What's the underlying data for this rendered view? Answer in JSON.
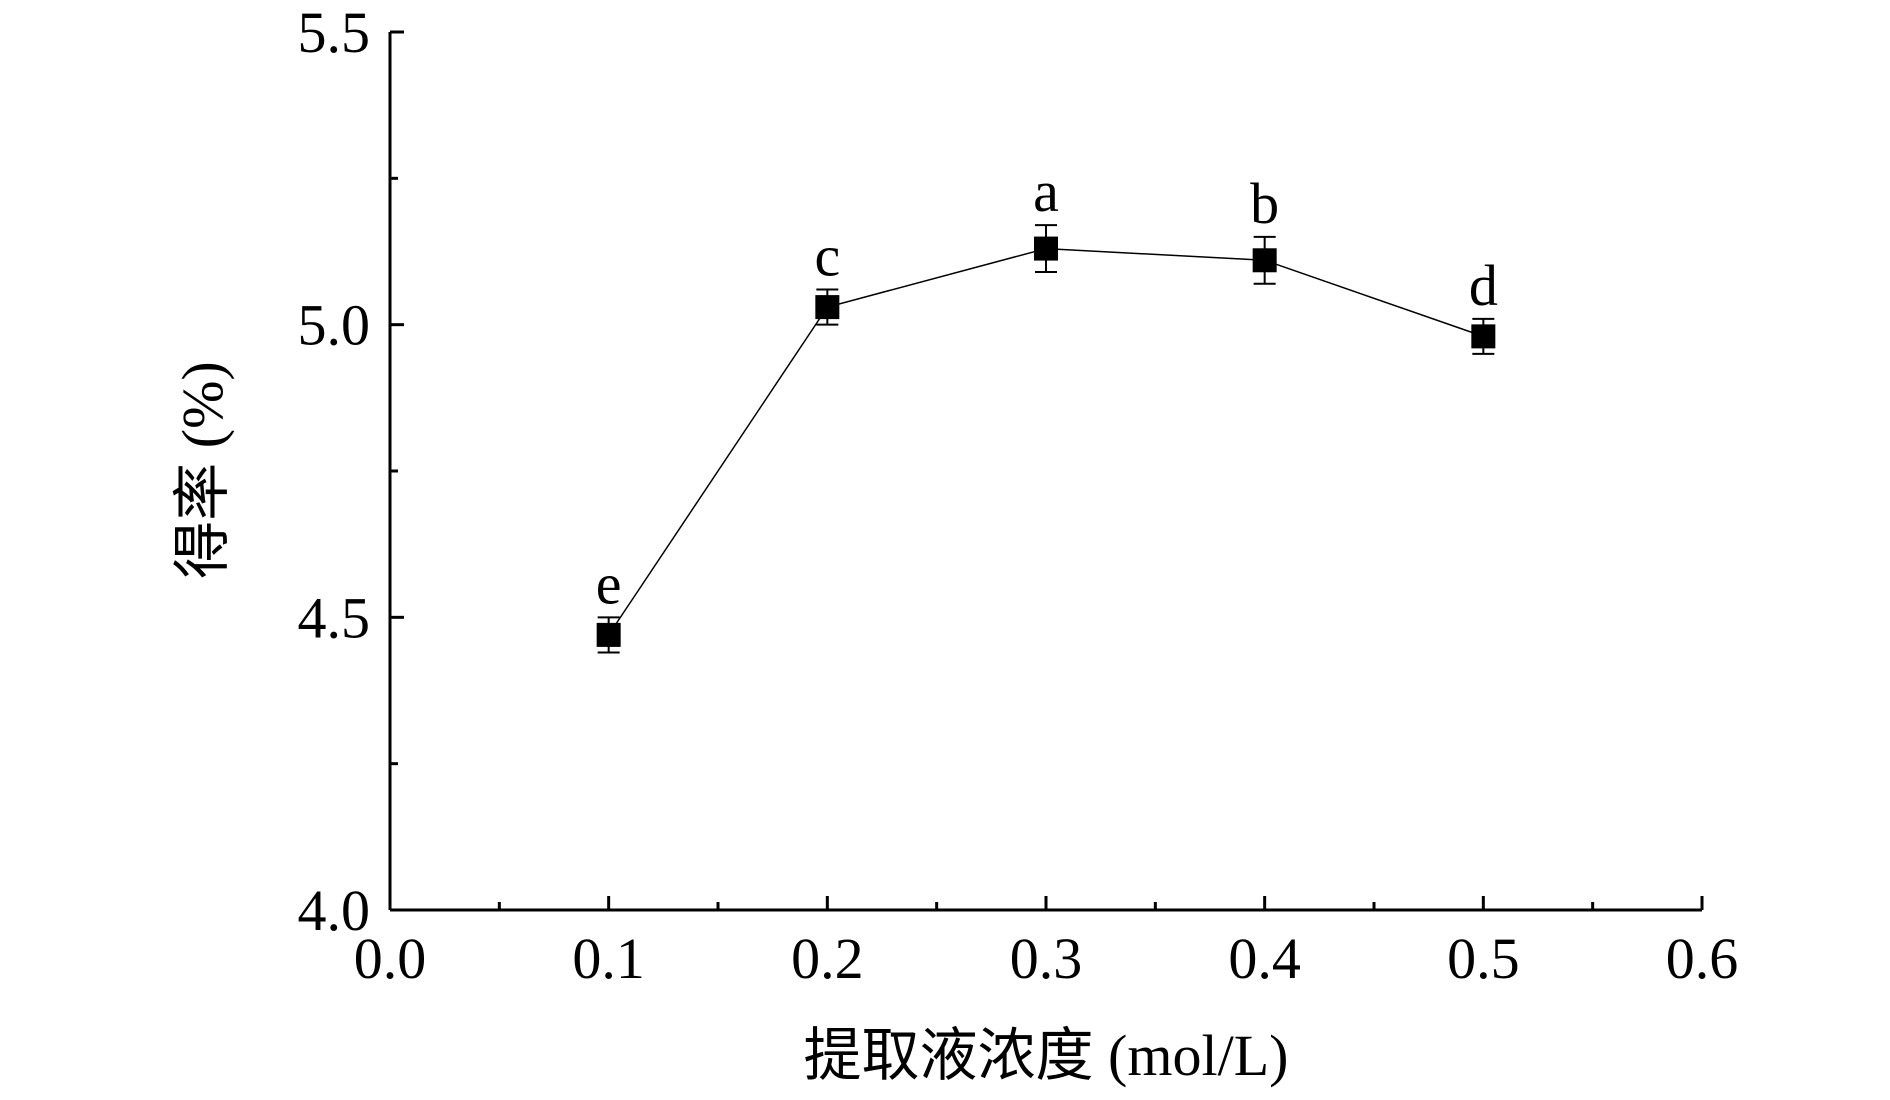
{
  "chart_data": {
    "type": "line",
    "xlabel": "提取液浓度 (mol/L)",
    "ylabel": "得率 (%)",
    "xlim": [
      0.0,
      0.6
    ],
    "ylim": [
      4.0,
      5.5
    ],
    "x_ticks": [
      0.0,
      0.1,
      0.2,
      0.3,
      0.4,
      0.5,
      0.6
    ],
    "x_tick_labels": [
      "0.0",
      "0.1",
      "0.2",
      "0.3",
      "0.4",
      "0.5",
      "0.6"
    ],
    "x_minor_ticks": [
      0.05,
      0.15,
      0.25,
      0.35,
      0.45,
      0.55
    ],
    "y_ticks": [
      4.0,
      4.5,
      5.0,
      5.5
    ],
    "y_tick_labels": [
      "4.0",
      "4.5",
      "5.0",
      "5.5"
    ],
    "y_minor_ticks": [
      4.25,
      4.75,
      5.25
    ],
    "grid": false,
    "marker": "square",
    "color": "#000000",
    "series": [
      {
        "x": [
          0.1,
          0.2,
          0.3,
          0.4,
          0.5
        ],
        "y": [
          4.47,
          5.03,
          5.13,
          5.11,
          4.98
        ],
        "error": [
          0.03,
          0.03,
          0.04,
          0.04,
          0.03
        ],
        "labels": [
          "e",
          "c",
          "a",
          "b",
          "d"
        ]
      }
    ]
  }
}
